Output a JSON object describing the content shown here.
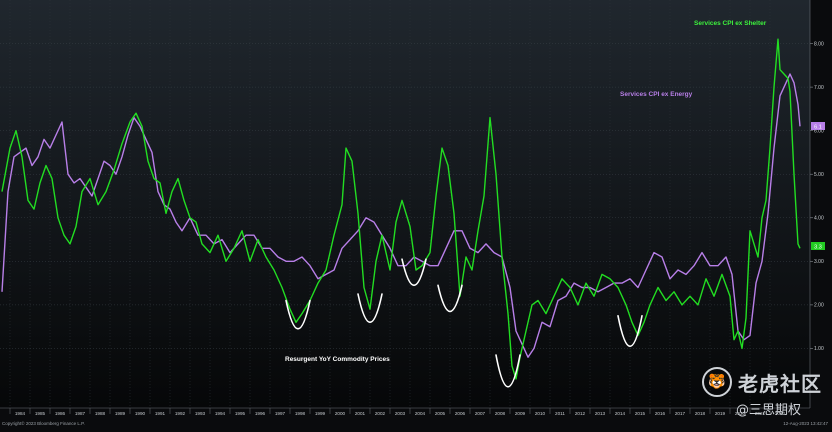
{
  "chart_data": {
    "type": "line",
    "annotations": {
      "services_cpi_ex_shelter": "Services CPI ex Shelter",
      "services_cpi_ex_energy": "Services CPI ex Energy",
      "resurgent": "Resurgent YoY Commodity Prices"
    },
    "footer_left": "Copyright© 2023 Bloomberg Finance L.P.",
    "footer_right": "12-Aug-2023 13:42:47",
    "yticks": [
      "1.00",
      "2.00",
      "3.00",
      "4.00",
      "5.00",
      "6.00",
      "7.00",
      "8.00"
    ],
    "ylim": [
      0,
      9
    ],
    "xlim": [
      1983.5,
      2024.0
    ],
    "xtick_labels": [
      "1984",
      "1985",
      "1986",
      "1987",
      "1988",
      "1989",
      "1990",
      "1991",
      "1992",
      "1993",
      "1994",
      "1995",
      "1996",
      "1997",
      "1998",
      "1999",
      "2000",
      "2001",
      "2002",
      "2003",
      "2004",
      "2005",
      "2006",
      "2007",
      "2008",
      "2009",
      "2010",
      "2011",
      "2012",
      "2013",
      "2014",
      "2015",
      "2016",
      "2017",
      "2018",
      "2019",
      "2020",
      "2021",
      "2022"
    ],
    "last_values": {
      "energy": "6.1",
      "shelter": "3.3"
    },
    "colors": {
      "ex_shelter": "#22dd22",
      "ex_energy": "#b87fe8",
      "shelter_badge": "#22cc22",
      "energy_badge": "#b87fe8",
      "arc": "#ffffff"
    },
    "series": [
      {
        "name": "Services CPI ex Shelter",
        "x": [
          1983.6,
          1983.8,
          1984.0,
          1984.3,
          1984.6,
          1984.9,
          1985.2,
          1985.5,
          1985.8,
          1986.1,
          1986.4,
          1986.7,
          1987.0,
          1987.3,
          1987.6,
          1988.0,
          1988.4,
          1988.8,
          1989.2,
          1989.6,
          1990.0,
          1990.3,
          1990.6,
          1990.9,
          1991.2,
          1991.5,
          1991.8,
          1992.1,
          1992.4,
          1992.7,
          1993.0,
          1993.3,
          1993.6,
          1994.0,
          1994.4,
          1994.8,
          1995.2,
          1995.6,
          1996.0,
          1996.4,
          1996.8,
          1997.2,
          1997.6,
          1998.0,
          1998.3,
          1998.6,
          1999.0,
          1999.4,
          1999.8,
          2000.2,
          2000.6,
          2000.8,
          2001.1,
          2001.4,
          2001.7,
          2002.0,
          2002.3,
          2002.6,
          2003.0,
          2003.3,
          2003.6,
          2004.0,
          2004.3,
          2004.6,
          2005.0,
          2005.3,
          2005.6,
          2005.9,
          2006.2,
          2006.5,
          2006.8,
          2007.1,
          2007.4,
          2007.7,
          2008.0,
          2008.3,
          2008.6,
          2008.9,
          2009.1,
          2009.3,
          2009.5,
          2009.8,
          2010.1,
          2010.4,
          2010.8,
          2011.2,
          2011.6,
          2012.0,
          2012.4,
          2012.8,
          2013.2,
          2013.6,
          2014.0,
          2014.4,
          2014.8,
          2015.1,
          2015.4,
          2015.7,
          2016.0,
          2016.4,
          2016.8,
          2017.2,
          2017.6,
          2018.0,
          2018.4,
          2018.8,
          2019.2,
          2019.6,
          2020.0,
          2020.2,
          2020.4,
          2020.6,
          2020.8,
          2021.0,
          2021.2,
          2021.4,
          2021.6,
          2021.8,
          2022.0,
          2022.2,
          2022.4,
          2022.5,
          2022.7,
          2022.9,
          2023.0,
          2023.2,
          2023.4,
          2023.5
        ],
        "values": [
          4.6,
          5.1,
          5.6,
          6.0,
          5.4,
          4.4,
          4.2,
          4.8,
          5.2,
          4.9,
          4.0,
          3.6,
          3.4,
          3.8,
          4.6,
          4.9,
          4.3,
          4.6,
          5.1,
          5.7,
          6.2,
          6.4,
          6.1,
          5.3,
          4.9,
          4.8,
          4.1,
          4.6,
          4.9,
          4.4,
          4.0,
          3.9,
          3.4,
          3.2,
          3.6,
          3.0,
          3.3,
          3.7,
          3.0,
          3.5,
          3.1,
          2.8,
          2.4,
          1.9,
          1.6,
          1.8,
          2.1,
          2.5,
          2.8,
          3.6,
          4.3,
          5.6,
          5.3,
          4.1,
          2.4,
          1.9,
          3.0,
          3.6,
          2.8,
          3.9,
          4.4,
          3.8,
          2.8,
          2.9,
          3.2,
          4.5,
          5.6,
          5.2,
          4.1,
          2.2,
          3.1,
          2.8,
          3.7,
          4.5,
          6.3,
          5.0,
          3.1,
          1.8,
          0.6,
          0.3,
          0.8,
          1.4,
          2.0,
          2.1,
          1.8,
          2.2,
          2.6,
          2.4,
          2.0,
          2.5,
          2.2,
          2.7,
          2.6,
          2.4,
          2.0,
          1.6,
          1.3,
          1.6,
          2.0,
          2.4,
          2.1,
          2.3,
          2.0,
          2.2,
          2.0,
          2.6,
          2.2,
          2.7,
          2.2,
          1.2,
          1.4,
          1.0,
          1.7,
          3.7,
          3.4,
          3.1,
          4.0,
          4.4,
          5.6,
          7.0,
          8.1,
          7.4,
          7.3,
          7.2,
          6.9,
          5.0,
          3.4,
          3.3
        ]
      },
      {
        "name": "Services CPI ex Energy",
        "x": [
          1983.6,
          1983.9,
          1984.2,
          1984.5,
          1984.8,
          1985.1,
          1985.4,
          1985.7,
          1986.0,
          1986.3,
          1986.6,
          1986.9,
          1987.2,
          1987.5,
          1987.8,
          1988.1,
          1988.4,
          1988.7,
          1989.0,
          1989.3,
          1989.6,
          1989.9,
          1990.2,
          1990.5,
          1990.8,
          1991.1,
          1991.4,
          1991.7,
          1992.0,
          1992.3,
          1992.6,
          1993.0,
          1993.4,
          1993.8,
          1994.2,
          1994.6,
          1995.0,
          1995.4,
          1995.8,
          1996.2,
          1996.6,
          1997.0,
          1997.4,
          1997.8,
          1998.2,
          1998.6,
          1999.0,
          1999.4,
          1999.8,
          2000.2,
          2000.6,
          2001.0,
          2001.4,
          2001.8,
          2002.2,
          2002.6,
          2003.0,
          2003.4,
          2003.8,
          2004.2,
          2004.6,
          2005.0,
          2005.4,
          2005.8,
          2006.2,
          2006.6,
          2007.0,
          2007.4,
          2007.8,
          2008.2,
          2008.6,
          2009.0,
          2009.3,
          2009.6,
          2009.9,
          2010.2,
          2010.6,
          2011.0,
          2011.4,
          2011.8,
          2012.2,
          2012.6,
          2013.0,
          2013.4,
          2013.8,
          2014.2,
          2014.6,
          2015.0,
          2015.4,
          2015.8,
          2016.2,
          2016.6,
          2017.0,
          2017.4,
          2017.8,
          2018.2,
          2018.6,
          2019.0,
          2019.4,
          2019.8,
          2020.1,
          2020.4,
          2020.7,
          2021.0,
          2021.3,
          2021.6,
          2021.9,
          2022.2,
          2022.5,
          2022.8,
          2023.0,
          2023.2,
          2023.4,
          2023.5
        ],
        "values": [
          2.3,
          4.6,
          5.4,
          5.5,
          5.6,
          5.2,
          5.4,
          5.8,
          5.6,
          5.9,
          6.2,
          5.0,
          4.8,
          4.9,
          4.7,
          4.5,
          4.9,
          5.3,
          5.2,
          5.0,
          5.4,
          5.9,
          6.3,
          6.1,
          5.8,
          5.5,
          4.6,
          4.3,
          4.2,
          3.9,
          3.7,
          4.0,
          3.6,
          3.6,
          3.4,
          3.5,
          3.2,
          3.4,
          3.6,
          3.6,
          3.3,
          3.3,
          3.1,
          3.0,
          3.0,
          3.1,
          2.9,
          2.6,
          2.7,
          2.8,
          3.3,
          3.5,
          3.7,
          4.0,
          3.9,
          3.6,
          3.3,
          2.9,
          2.9,
          3.1,
          3.0,
          2.9,
          2.9,
          3.3,
          3.7,
          3.7,
          3.3,
          3.2,
          3.4,
          3.2,
          3.1,
          2.4,
          1.4,
          1.1,
          0.8,
          1.0,
          1.6,
          1.5,
          2.1,
          2.2,
          2.5,
          2.4,
          2.4,
          2.3,
          2.4,
          2.5,
          2.5,
          2.6,
          2.4,
          2.8,
          3.2,
          3.1,
          2.6,
          2.8,
          2.7,
          2.9,
          3.2,
          2.9,
          2.9,
          3.1,
          2.7,
          1.4,
          1.2,
          1.3,
          2.5,
          3.0,
          4.1,
          5.6,
          6.8,
          7.1,
          7.3,
          7.1,
          6.6,
          6.1
        ]
      }
    ],
    "arcs": [
      {
        "cx": 1998.4,
        "top": 2.1,
        "bottom": 1.45
      },
      {
        "cx": 2002.0,
        "top": 2.25,
        "bottom": 1.6
      },
      {
        "cx": 2004.2,
        "top": 3.05,
        "bottom": 2.45
      },
      {
        "cx": 2006.0,
        "top": 2.45,
        "bottom": 1.85
      },
      {
        "cx": 2008.9,
        "top": 0.85,
        "bottom": 0.12
      },
      {
        "cx": 2015.0,
        "top": 1.75,
        "bottom": 1.05
      }
    ]
  },
  "watermark": {
    "title": "老虎社区",
    "subtitle": "@三思期权"
  }
}
